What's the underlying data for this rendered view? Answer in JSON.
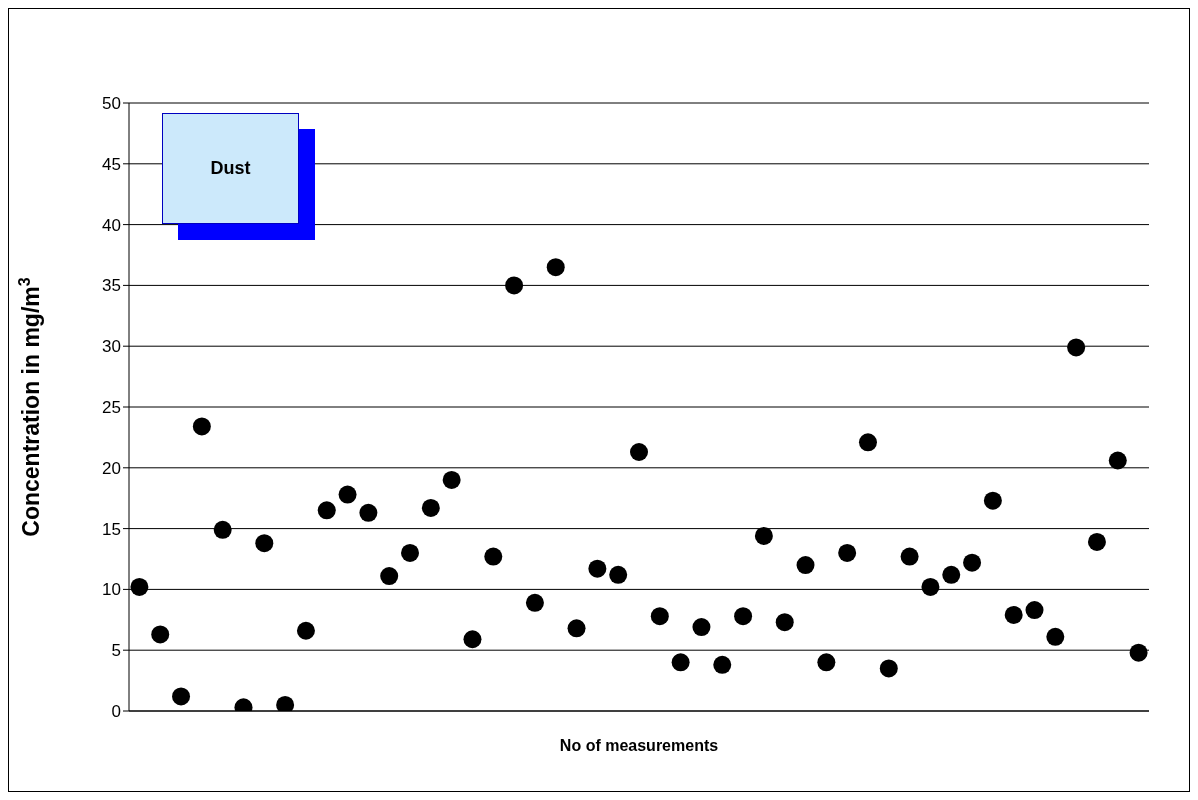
{
  "chart_data": {
    "type": "scatter",
    "xlabel": "No of measurements",
    "ylabel": "Concentration in mg/m$^{3}$",
    "annotations": [
      "Dust"
    ],
    "categories": [
      null,
      null,
      null,
      null,
      null,
      null,
      null,
      null,
      null,
      null,
      null,
      null,
      null,
      null,
      null,
      null,
      null,
      null,
      null,
      null,
      null,
      null,
      null,
      null,
      null,
      null,
      null,
      null,
      null,
      null,
      null,
      null,
      null,
      null,
      null,
      null,
      null,
      null,
      null,
      null,
      null,
      null,
      null,
      null,
      null,
      null,
      null,
      null,
      null
    ],
    "series": [
      {
        "color": "#000000",
        "values": [
          10.2,
          6.3,
          1.2,
          23.4,
          14.9,
          0.3,
          13.8,
          0.5,
          6.6,
          16.5,
          17.8,
          16.3,
          11.1,
          13.0,
          16.7,
          19.0,
          5.9,
          12.7,
          35.0,
          8.9,
          36.5,
          6.8,
          11.7,
          11.2,
          21.3,
          7.8,
          4.0,
          6.9,
          3.8,
          7.8,
          14.4,
          7.3,
          12.0,
          4.0,
          13.0,
          22.1,
          3.5,
          12.7,
          10.2,
          11.2,
          12.2,
          17.3,
          7.9,
          8.3,
          6.1,
          29.9,
          13.9,
          20.6,
          4.8
        ]
      }
    ],
    "ylim": [
      0,
      50
    ],
    "yticks": [
      0,
      5,
      10,
      15,
      20,
      25,
      30,
      35,
      40,
      45,
      50
    ],
    "grid": "y",
    "marker": "circle"
  }
}
